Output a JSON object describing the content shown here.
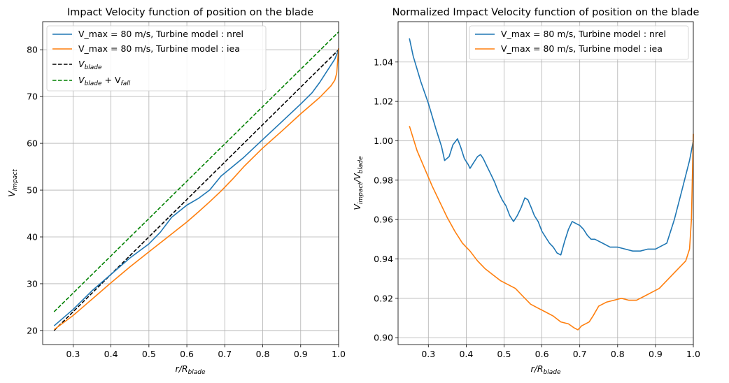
{
  "chart_data": [
    {
      "type": "line",
      "title": "Impact Velocity function of position on the blade",
      "xlabel_main": "r/R",
      "xlabel_sub": "blade",
      "ylabel_main": "V",
      "ylabel_sub": "impact",
      "xlim": [
        0.22,
        1.0
      ],
      "ylim": [
        17,
        86
      ],
      "xticks": [
        0.3,
        0.4,
        0.5,
        0.6,
        0.7,
        0.8,
        0.9,
        1.0
      ],
      "xtick_labels": [
        "0.3",
        "0.4",
        "0.5",
        "0.6",
        "0.7",
        "0.8",
        "0.9",
        "1.0"
      ],
      "yticks": [
        20,
        30,
        40,
        50,
        60,
        70,
        80
      ],
      "ytick_labels": [
        "20",
        "30",
        "40",
        "50",
        "60",
        "70",
        "80"
      ],
      "grid": true,
      "legend_position": "top-left",
      "series": [
        {
          "name": "V_max = 80 m/s, Turbine model : nrel",
          "color": "#1f77b4",
          "style": "solid",
          "x": [
            0.25,
            0.3,
            0.35,
            0.4,
            0.45,
            0.5,
            0.53,
            0.56,
            0.6,
            0.63,
            0.66,
            0.69,
            0.72,
            0.75,
            0.8,
            0.85,
            0.9,
            0.93,
            0.95,
            0.97,
            0.99,
            1.0
          ],
          "y": [
            21.0,
            24.5,
            28.5,
            32.0,
            35.5,
            38.5,
            41.0,
            44.2,
            46.8,
            48.2,
            50.0,
            53.0,
            55.0,
            57.0,
            60.8,
            64.6,
            68.4,
            70.8,
            73.0,
            75.5,
            78.0,
            80.0
          ]
        },
        {
          "name": "V_max = 80 m/s, Turbine model : iea",
          "color": "#ff7f0e",
          "style": "solid",
          "x": [
            0.25,
            0.3,
            0.35,
            0.4,
            0.45,
            0.5,
            0.55,
            0.6,
            0.63,
            0.66,
            0.69,
            0.72,
            0.75,
            0.8,
            0.85,
            0.9,
            0.95,
            0.98,
            0.99,
            0.995,
            1.0
          ],
          "y": [
            20.2,
            23.2,
            26.7,
            30.2,
            33.6,
            36.8,
            40.0,
            43.2,
            45.3,
            47.5,
            49.8,
            52.3,
            55.0,
            59.0,
            62.6,
            66.3,
            69.8,
            72.3,
            73.5,
            75.0,
            80.3
          ]
        },
        {
          "name": "V",
          "name_sub": "blade",
          "color": "#000000",
          "style": "dashed",
          "x": [
            0.25,
            1.0
          ],
          "y": [
            20.0,
            80.0
          ]
        },
        {
          "name": "V",
          "name_sub": "blade",
          "name_mid": " + V",
          "name_sub2": "fall",
          "color": "#008000",
          "style": "dashed",
          "x": [
            0.25,
            1.0
          ],
          "y": [
            24.0,
            83.8
          ]
        }
      ]
    },
    {
      "type": "line",
      "title": "Normalized Impact Velocity function of position on the blade",
      "xlabel_main": "r/R",
      "xlabel_sub": "blade",
      "ylabel_main": "V",
      "ylabel_sub": "impact",
      "ylabel_mid": "/V",
      "ylabel_sub2": "blade",
      "xlim": [
        0.22,
        1.0
      ],
      "ylim": [
        0.8965,
        1.0605
      ],
      "xticks": [
        0.3,
        0.4,
        0.5,
        0.6,
        0.7,
        0.8,
        0.9,
        1.0
      ],
      "xtick_labels": [
        "0.3",
        "0.4",
        "0.5",
        "0.6",
        "0.7",
        "0.8",
        "0.9",
        "1.0"
      ],
      "yticks": [
        0.9,
        0.92,
        0.94,
        0.96,
        0.98,
        1.0,
        1.02,
        1.04
      ],
      "ytick_labels": [
        "0.90",
        "0.92",
        "0.94",
        "0.96",
        "0.98",
        "1.00",
        "1.02",
        "1.04"
      ],
      "grid": true,
      "legend_position": "top-right",
      "series": [
        {
          "name": "V_max = 80 m/s, Turbine model : nrel",
          "color": "#1f77b4",
          "style": "solid",
          "x": [
            0.25,
            0.26,
            0.28,
            0.3,
            0.32,
            0.335,
            0.343,
            0.355,
            0.365,
            0.377,
            0.385,
            0.395,
            0.405,
            0.41,
            0.42,
            0.43,
            0.438,
            0.445,
            0.455,
            0.465,
            0.475,
            0.485,
            0.495,
            0.505,
            0.515,
            0.525,
            0.535,
            0.545,
            0.555,
            0.563,
            0.572,
            0.58,
            0.59,
            0.6,
            0.61,
            0.62,
            0.63,
            0.64,
            0.65,
            0.66,
            0.67,
            0.68,
            0.69,
            0.7,
            0.71,
            0.72,
            0.73,
            0.74,
            0.75,
            0.76,
            0.78,
            0.8,
            0.82,
            0.84,
            0.86,
            0.88,
            0.9,
            0.91,
            0.93,
            0.95,
            0.97,
            0.99,
            1.0
          ],
          "y": [
            1.052,
            1.043,
            1.03,
            1.019,
            1.006,
            0.997,
            0.99,
            0.992,
            0.998,
            1.001,
            0.997,
            0.991,
            0.988,
            0.986,
            0.989,
            0.992,
            0.993,
            0.991,
            0.987,
            0.983,
            0.979,
            0.974,
            0.97,
            0.967,
            0.962,
            0.959,
            0.962,
            0.966,
            0.971,
            0.97,
            0.966,
            0.962,
            0.959,
            0.954,
            0.951,
            0.948,
            0.946,
            0.943,
            0.942,
            0.949,
            0.955,
            0.959,
            0.958,
            0.957,
            0.955,
            0.952,
            0.95,
            0.95,
            0.949,
            0.948,
            0.946,
            0.946,
            0.945,
            0.944,
            0.944,
            0.945,
            0.945,
            0.946,
            0.948,
            0.96,
            0.975,
            0.99,
            1.0
          ]
        },
        {
          "name": "V_max = 80 m/s, Turbine model : iea",
          "color": "#ff7f0e",
          "style": "solid",
          "x": [
            0.25,
            0.27,
            0.29,
            0.31,
            0.33,
            0.35,
            0.37,
            0.39,
            0.41,
            0.43,
            0.45,
            0.47,
            0.49,
            0.51,
            0.53,
            0.55,
            0.57,
            0.59,
            0.61,
            0.63,
            0.65,
            0.67,
            0.685,
            0.695,
            0.705,
            0.715,
            0.725,
            0.735,
            0.75,
            0.77,
            0.79,
            0.81,
            0.83,
            0.85,
            0.87,
            0.89,
            0.91,
            0.93,
            0.95,
            0.97,
            0.98,
            0.99,
            0.995,
            1.0
          ],
          "y": [
            1.0075,
            0.995,
            0.986,
            0.977,
            0.969,
            0.961,
            0.954,
            0.948,
            0.944,
            0.939,
            0.935,
            0.932,
            0.929,
            0.927,
            0.925,
            0.921,
            0.917,
            0.915,
            0.913,
            0.911,
            0.908,
            0.907,
            0.905,
            0.904,
            0.906,
            0.907,
            0.908,
            0.911,
            0.916,
            0.918,
            0.919,
            0.92,
            0.919,
            0.919,
            0.921,
            0.923,
            0.925,
            0.929,
            0.933,
            0.937,
            0.939,
            0.945,
            0.96,
            1.0035
          ]
        }
      ]
    }
  ]
}
